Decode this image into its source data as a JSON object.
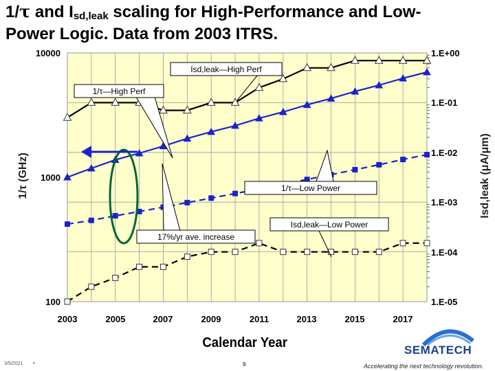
{
  "title": {
    "line1_a": "1/",
    "tau": "τ",
    "line1_b": " and I",
    "sub": "sd,leak",
    "line1_c": " scaling for High-Performance and Low-",
    "line2": "Power Logic.  Data from 2003 ITRS."
  },
  "chart_data": {
    "type": "line",
    "title": "1/τ and Isd,leak scaling for High-Performance and Low-Power Logic. Data from 2003 ITRS.",
    "xlabel": "Calendar Year",
    "ylabel_left": "1/τ (GHz)",
    "ylabel_right": "Isd,leak (μA/μm)",
    "xlim": [
      2003,
      2018
    ],
    "x_ticks": [
      "2003",
      "2005",
      "2007",
      "2009",
      "2011",
      "2013",
      "2015",
      "2017"
    ],
    "ylim_left": [
      100,
      10000
    ],
    "y_ticks_left": [
      "10000",
      "1000",
      "100"
    ],
    "ylim_right": [
      1e-05,
      1
    ],
    "y_ticks_right": [
      "1.E+00",
      "1.E-01",
      "1.E-02",
      "1.E-03",
      "1.E-04",
      "1.E-05"
    ],
    "x": [
      2003,
      2004,
      2005,
      2006,
      2007,
      2008,
      2009,
      2010,
      2011,
      2012,
      2013,
      2014,
      2015,
      2016,
      2017,
      2018
    ],
    "series": [
      {
        "name": "1/τ—High Perf",
        "axis": "left",
        "line": "solid",
        "marker": "filled-triangle",
        "values": [
          1000,
          1180,
          1380,
          1560,
          1780,
          2050,
          2320,
          2600,
          2980,
          3350,
          3820,
          4300,
          4900,
          5500,
          6250,
          7000
        ]
      },
      {
        "name": "Isd,leak—High Perf",
        "axis": "right",
        "line": "solid",
        "marker": "open-triangle",
        "values": [
          0.05,
          0.1,
          0.1,
          0.1,
          0.07,
          0.07,
          0.1,
          0.1,
          0.2,
          0.3,
          0.5,
          0.5,
          0.7,
          0.7,
          0.7,
          0.7
        ]
      },
      {
        "name": "1/τ—Low Power",
        "axis": "left",
        "line": "dashed",
        "marker": "filled-square",
        "values": [
          420,
          450,
          490,
          530,
          575,
          625,
          680,
          740,
          805,
          880,
          960,
          1050,
          1150,
          1260,
          1390,
          1520
        ]
      },
      {
        "name": "Isd,leak—Low Power",
        "axis": "right",
        "line": "dashed",
        "marker": "open-square",
        "values": [
          1e-05,
          2e-05,
          3e-05,
          5e-05,
          5e-05,
          8e-05,
          0.0001,
          0.0001,
          0.00015,
          0.0001,
          0.0001,
          0.0001,
          0.0001,
          0.0001,
          0.00015,
          0.00015
        ]
      }
    ],
    "annotations": [
      {
        "text": "Isd,leak—High Perf"
      },
      {
        "text": "1/τ—High Perf"
      },
      {
        "text": "1/τ—Low Power"
      },
      {
        "text": "Isd,leak—Low Power"
      },
      {
        "text": "17%/yr ave. increase"
      }
    ],
    "colors": {
      "plot_bg": "#ffffcc",
      "blue": "#1a22cc",
      "black": "#000000",
      "green": "#006633"
    }
  },
  "footer": {
    "date": "3/5/2021",
    "dot": "•",
    "page": "9"
  },
  "logo": {
    "name": "SEMATECH",
    "tagline": "Accelerating the next technology revolution."
  }
}
